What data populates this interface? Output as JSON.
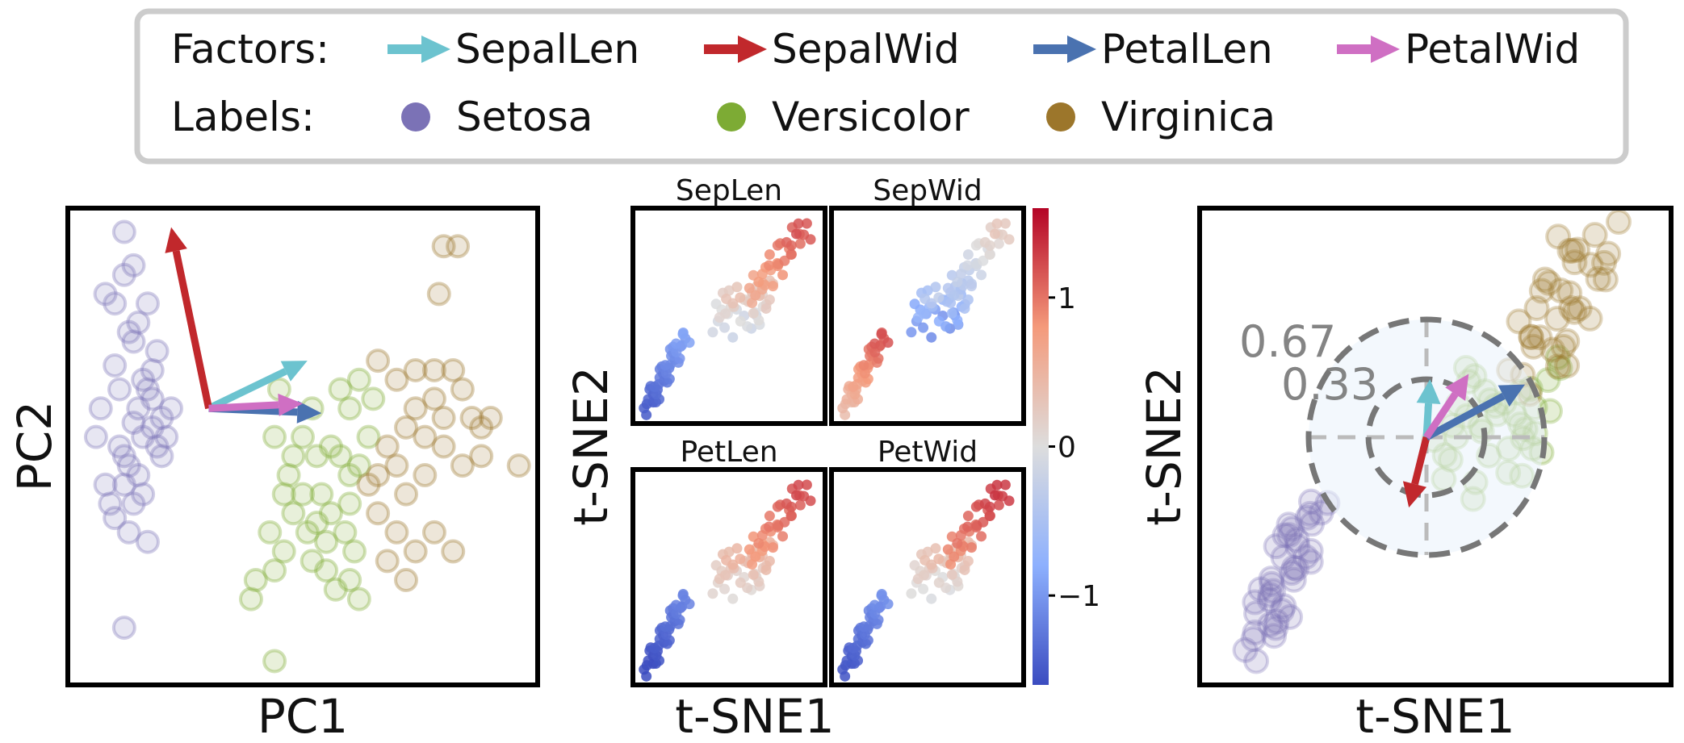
{
  "legend": {
    "factors_label": "Factors:",
    "labels_label": "Labels:",
    "factors": [
      {
        "name": "SepalLen",
        "color": "#6cc3cf"
      },
      {
        "name": "SepalWid",
        "color": "#c1282c"
      },
      {
        "name": "PetalLen",
        "color": "#4a72b0"
      },
      {
        "name": "PetalWid",
        "color": "#cf6fc3"
      }
    ],
    "labels": [
      {
        "name": "Setosa",
        "color": "#7b72b6"
      },
      {
        "name": "Versicolor",
        "color": "#7dab34"
      },
      {
        "name": "Virginica",
        "color": "#9c762b"
      }
    ]
  },
  "chart_data": [
    {
      "type": "scatter",
      "panel": "pca-biplot",
      "xlabel": "PC1",
      "ylabel": "PC2",
      "xlim": [
        0,
        100
      ],
      "ylim": [
        0,
        100
      ],
      "series": [
        {
          "name": "Setosa",
          "color": "#7b72b6",
          "points": [
            [
              12,
              95
            ],
            [
              8,
              82
            ],
            [
              7,
              58
            ],
            [
              14,
              72
            ],
            [
              17,
              62
            ],
            [
              10,
              67
            ],
            [
              18,
              54
            ],
            [
              12,
              48
            ],
            [
              15,
              58
            ],
            [
              11,
              50
            ],
            [
              13,
              46
            ],
            [
              20,
              48
            ],
            [
              16,
              52
            ],
            [
              18,
              66
            ],
            [
              12,
              42
            ],
            [
              8,
              42
            ],
            [
              14,
              38
            ],
            [
              10,
              35
            ],
            [
              16,
              40
            ],
            [
              13,
              32
            ],
            [
              17,
              30
            ],
            [
              9,
              38
            ],
            [
              15,
              44
            ],
            [
              20,
              56
            ],
            [
              14,
              55
            ],
            [
              11,
              62
            ],
            [
              19,
              70
            ],
            [
              13,
              74
            ],
            [
              15,
              76
            ],
            [
              17,
              80
            ],
            [
              12,
              86
            ],
            [
              14,
              88
            ],
            [
              10,
              80
            ],
            [
              16,
              64
            ],
            [
              18,
              60
            ],
            [
              22,
              58
            ],
            [
              19,
              50
            ],
            [
              21,
              52
            ],
            [
              6,
              52
            ],
            [
              12,
              12
            ]
          ]
        },
        {
          "name": "Versicolor",
          "color": "#7dab34",
          "points": [
            [
              45,
              62
            ],
            [
              52,
              58
            ],
            [
              48,
              48
            ],
            [
              53,
              48
            ],
            [
              58,
              48
            ],
            [
              60,
              44
            ],
            [
              47,
              44
            ],
            [
              50,
              40
            ],
            [
              54,
              40
            ],
            [
              56,
              36
            ],
            [
              48,
              36
            ],
            [
              51,
              32
            ],
            [
              46,
              28
            ],
            [
              44,
              24
            ],
            [
              55,
              24
            ],
            [
              57,
              20
            ],
            [
              40,
              22
            ],
            [
              39,
              18
            ],
            [
              55,
              30
            ],
            [
              52,
              26
            ],
            [
              60,
              38
            ],
            [
              62,
              46
            ],
            [
              64,
              52
            ],
            [
              60,
              58
            ],
            [
              65,
              60
            ],
            [
              58,
              62
            ],
            [
              62,
              64
            ],
            [
              50,
              52
            ],
            [
              56,
              50
            ],
            [
              44,
              52
            ],
            [
              59,
              32
            ],
            [
              61,
              28
            ],
            [
              53,
              34
            ],
            [
              46,
              40
            ],
            [
              43,
              32
            ],
            [
              60,
              22
            ],
            [
              62,
              18
            ],
            [
              44,
              5
            ]
          ]
        },
        {
          "name": "Virginica",
          "color": "#9c762b",
          "points": [
            [
              80,
              92
            ],
            [
              83,
              92
            ],
            [
              79,
              82
            ],
            [
              66,
              68
            ],
            [
              70,
              64
            ],
            [
              74,
              66
            ],
            [
              78,
              66
            ],
            [
              82,
              66
            ],
            [
              84,
              62
            ],
            [
              86,
              56
            ],
            [
              88,
              54
            ],
            [
              72,
              54
            ],
            [
              76,
              52
            ],
            [
              80,
              50
            ],
            [
              84,
              46
            ],
            [
              70,
              46
            ],
            [
              66,
              44
            ],
            [
              72,
              40
            ],
            [
              66,
              36
            ],
            [
              70,
              32
            ],
            [
              74,
              28
            ],
            [
              78,
              32
            ],
            [
              82,
              28
            ],
            [
              64,
              42
            ],
            [
              68,
              50
            ],
            [
              74,
              58
            ],
            [
              78,
              60
            ],
            [
              88,
              48
            ],
            [
              90,
              56
            ],
            [
              96,
              46
            ],
            [
              72,
              22
            ],
            [
              68,
              26
            ],
            [
              76,
              44
            ],
            [
              80,
              56
            ]
          ]
        }
      ],
      "loadings": [
        {
          "factor": "SepalLen",
          "x": 51,
          "y": 68
        },
        {
          "factor": "SepalWid",
          "x": 22,
          "y": 96
        },
        {
          "factor": "PetalLen",
          "x": 54,
          "y": 57
        },
        {
          "factor": "PetalWid",
          "x": 50,
          "y": 59
        }
      ],
      "loading_origin": {
        "x": 30,
        "y": 58
      }
    },
    {
      "type": "scatter",
      "panel": "tsne-feature-grid",
      "xlabel": "t-SNE1",
      "ylabel": "t-SNE2",
      "subplots": [
        "SepLen",
        "SepWid",
        "PetLen",
        "PetWid"
      ],
      "colorbar": {
        "min": -1.6,
        "max": 1.6,
        "ticks": [
          -1,
          0,
          1
        ],
        "tick_labels": [
          "−1",
          "0",
          "1"
        ],
        "colormap": "coolwarm"
      }
    },
    {
      "type": "scatter",
      "panel": "tsne-factor-glyph",
      "xlabel": "t-SNE1",
      "ylabel": "t-SNE2",
      "rings": [
        {
          "value": 0.33,
          "label": "0.33"
        },
        {
          "value": 0.67,
          "label": "0.67"
        }
      ],
      "arrows": [
        {
          "factor": "SepalLen",
          "dx": 0.02,
          "dy": 0.33
        },
        {
          "factor": "SepalWid",
          "dx": -0.1,
          "dy": -0.4
        },
        {
          "factor": "PetalLen",
          "dx": 0.56,
          "dy": 0.3
        },
        {
          "factor": "PetalWid",
          "dx": 0.24,
          "dy": 0.36
        }
      ]
    }
  ]
}
